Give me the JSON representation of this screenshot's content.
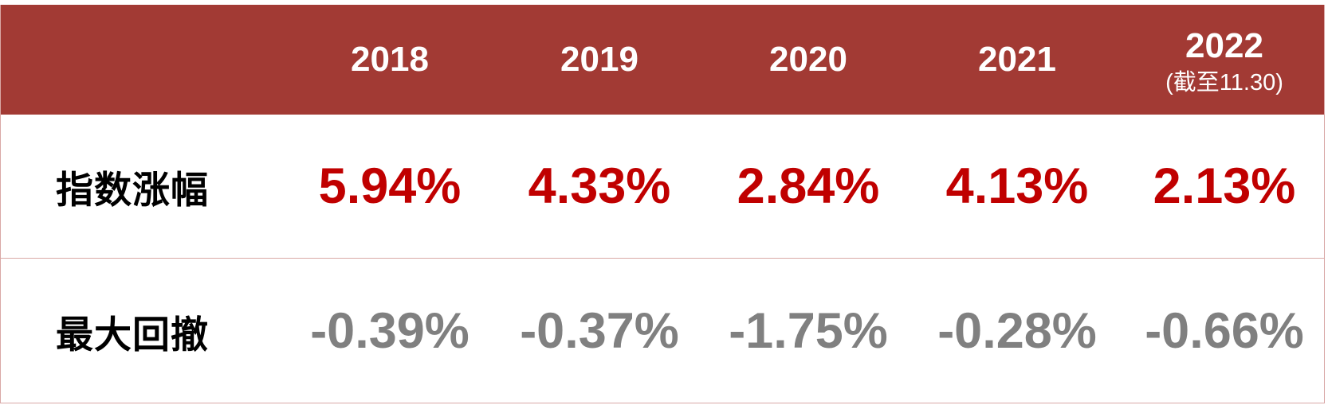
{
  "header": {
    "years": [
      "2018",
      "2019",
      "2020",
      "2021",
      "2022"
    ],
    "note_2022": "(截至11.30)"
  },
  "rows": [
    {
      "label": "指数涨幅",
      "values": [
        "5.94%",
        "4.33%",
        "2.84%",
        "4.13%",
        "2.13%"
      ]
    },
    {
      "label": "最大回撤",
      "values": [
        "-0.39%",
        "-0.37%",
        "-1.75%",
        "-0.28%",
        "-0.66%"
      ]
    }
  ],
  "colors": {
    "header_bg": "#a23a34",
    "header_text": "#ffffff",
    "positive": "#c00000",
    "negative": "#808080",
    "label": "#000000",
    "border": "#d9a8a6"
  }
}
